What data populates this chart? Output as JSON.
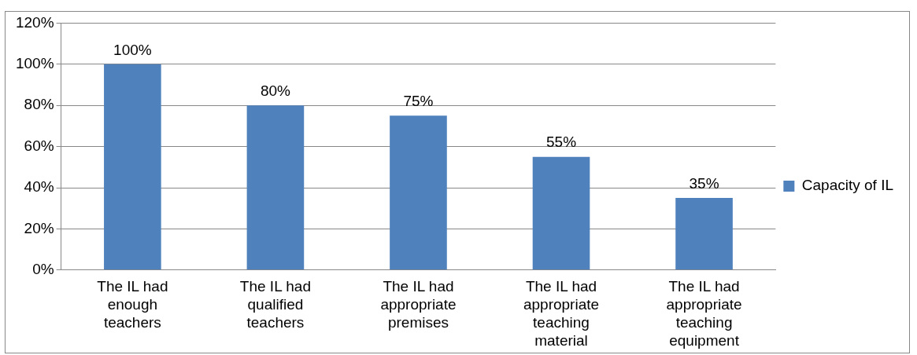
{
  "chart_data": {
    "type": "bar",
    "categories": [
      "The IL had enough teachers",
      "The IL had qualified teachers",
      "The IL had appropriate premises",
      "The IL had appropriate teaching material",
      "The IL had appropriate teaching equipment"
    ],
    "series": [
      {
        "name": "Capacity of IL",
        "color": "#4f81bd",
        "values": [
          100,
          80,
          75,
          55,
          35
        ],
        "value_labels": [
          "100%",
          "80%",
          "75%",
          "55%",
          "35%"
        ]
      }
    ],
    "ylim": [
      0,
      120
    ],
    "yticks": [
      {
        "value": 0,
        "label": "0%"
      },
      {
        "value": 20,
        "label": "20%"
      },
      {
        "value": 40,
        "label": "40%"
      },
      {
        "value": 60,
        "label": "60%"
      },
      {
        "value": 80,
        "label": "80%"
      },
      {
        "value": 100,
        "label": "100%"
      },
      {
        "value": 120,
        "label": "120%"
      }
    ],
    "grid": "y",
    "legend": "right"
  }
}
